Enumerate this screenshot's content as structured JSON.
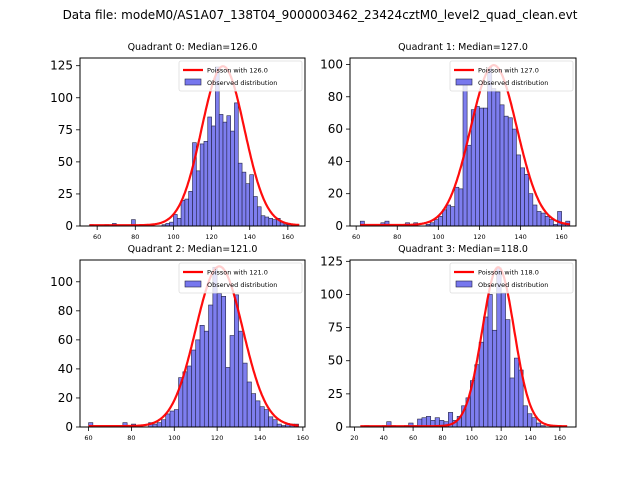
{
  "figure": {
    "suptitle": "Data file: modeM0/AS1A07_138T04_9000003462_23424cztM0_level2_quad_clean.evt"
  },
  "colors": {
    "bar_fill": "#7777ee",
    "bar_edge": "#222244",
    "poisson_line": "#ff0000"
  },
  "chart_data": [
    {
      "type": "bar",
      "title": "Quadrant 0: Median=126.0",
      "legend": [
        "Poisson with 126.0",
        "Observed distribution"
      ],
      "legend_position": "top-right",
      "xlim": [
        51,
        169
      ],
      "ylim": [
        0,
        131
      ],
      "xticks": [
        60,
        80,
        100,
        120,
        140,
        160
      ],
      "yticks": [
        0,
        25,
        50,
        75,
        100,
        125
      ],
      "bin_width": 2,
      "bin_starts": [
        56,
        58,
        60,
        62,
        64,
        66,
        68,
        70,
        72,
        74,
        76,
        78,
        80,
        82,
        84,
        86,
        88,
        90,
        92,
        94,
        96,
        98,
        100,
        102,
        104,
        106,
        108,
        110,
        112,
        114,
        116,
        118,
        120,
        122,
        124,
        126,
        128,
        130,
        132,
        134,
        136,
        138,
        140,
        142,
        144,
        146,
        148,
        150,
        152,
        154,
        156,
        158,
        160,
        162,
        164
      ],
      "values": [
        1,
        0,
        0,
        0,
        1,
        0,
        2,
        0,
        0,
        0,
        0,
        5,
        0,
        0,
        0,
        0,
        0,
        0,
        0,
        1,
        2,
        3,
        9,
        6,
        20,
        21,
        27,
        65,
        43,
        64,
        66,
        85,
        78,
        124,
        87,
        81,
        86,
        74,
        96,
        49,
        42,
        33,
        40,
        23,
        15,
        8,
        7,
        6,
        5,
        6,
        3,
        1,
        1,
        0,
        0
      ],
      "poisson_mean": 126.0,
      "poisson_scale_peak": 124
    },
    {
      "type": "bar",
      "title": "Quadrant 1: Median=127.0",
      "legend": [
        "Poisson with 127.0",
        "Observed distribution"
      ],
      "legend_position": "top-right",
      "xlim": [
        57,
        167
      ],
      "ylim": [
        0,
        104
      ],
      "xticks": [
        60,
        80,
        100,
        120,
        140,
        160
      ],
      "yticks": [
        0,
        20,
        40,
        60,
        80,
        100
      ],
      "bin_width": 2,
      "bin_starts": [
        62,
        64,
        66,
        68,
        70,
        72,
        74,
        76,
        78,
        80,
        82,
        84,
        86,
        88,
        90,
        92,
        94,
        96,
        98,
        100,
        102,
        104,
        106,
        108,
        110,
        112,
        114,
        116,
        118,
        120,
        122,
        124,
        126,
        128,
        130,
        132,
        134,
        136,
        138,
        140,
        142,
        144,
        146,
        148,
        150,
        152,
        154,
        156,
        158,
        160,
        162
      ],
      "values": [
        3,
        0,
        0,
        0,
        0,
        2,
        3,
        0,
        0,
        0,
        0,
        2,
        0,
        2,
        0,
        0,
        1,
        2,
        4,
        6,
        10,
        13,
        12,
        24,
        23,
        88,
        50,
        72,
        74,
        73,
        73,
        98,
        85,
        83,
        75,
        68,
        67,
        60,
        44,
        36,
        32,
        20,
        13,
        9,
        8,
        6,
        4,
        1,
        9,
        1,
        3
      ],
      "poisson_mean": 127.0,
      "poisson_scale_peak": 99
    },
    {
      "type": "bar",
      "title": "Quadrant 2: Median=121.0",
      "legend": [
        "Poisson with 121.0",
        "Observed distribution"
      ],
      "legend_position": "top-right",
      "xlim": [
        56,
        161
      ],
      "ylim": [
        0,
        115
      ],
      "xticks": [
        60,
        80,
        100,
        120,
        140,
        160
      ],
      "yticks": [
        0,
        20,
        40,
        60,
        80,
        100
      ],
      "bin_width": 2,
      "bin_starts": [
        60,
        62,
        64,
        66,
        68,
        70,
        72,
        74,
        76,
        78,
        80,
        82,
        84,
        86,
        88,
        90,
        92,
        94,
        96,
        98,
        100,
        102,
        104,
        106,
        108,
        110,
        112,
        114,
        116,
        118,
        120,
        122,
        124,
        126,
        128,
        130,
        132,
        134,
        136,
        138,
        140,
        142,
        144,
        146,
        148,
        150,
        152,
        154,
        156
      ],
      "values": [
        3,
        0,
        0,
        0,
        0,
        0,
        0,
        0,
        3,
        0,
        2,
        0,
        0,
        0,
        3,
        2,
        3,
        5,
        9,
        11,
        12,
        34,
        38,
        42,
        53,
        60,
        70,
        66,
        84,
        110,
        92,
        90,
        41,
        63,
        91,
        66,
        44,
        31,
        23,
        18,
        14,
        12,
        7,
        5,
        2,
        1,
        2,
        2,
        2
      ],
      "poisson_mean": 121.0,
      "poisson_scale_peak": 110
    },
    {
      "type": "bar",
      "title": "Quadrant 3: Median=118.0",
      "legend": [
        "Poisson with 118.0",
        "Observed distribution"
      ],
      "legend_position": "top-right",
      "xlim": [
        17,
        171
      ],
      "ylim": [
        0,
        126
      ],
      "xticks": [
        20,
        40,
        60,
        80,
        100,
        120,
        140,
        160
      ],
      "yticks": [
        0,
        25,
        50,
        75,
        100,
        125
      ],
      "bin_width": 3,
      "bin_starts": [
        24,
        27,
        30,
        33,
        36,
        39,
        42,
        45,
        48,
        51,
        54,
        57,
        60,
        63,
        66,
        69,
        72,
        75,
        78,
        81,
        84,
        87,
        90,
        93,
        96,
        99,
        102,
        105,
        108,
        111,
        114,
        117,
        120,
        123,
        126,
        129,
        132,
        135,
        138,
        141,
        144,
        147,
        150,
        153,
        156,
        159,
        162
      ],
      "values": [
        0,
        1,
        0,
        0,
        0,
        1,
        4,
        1,
        0,
        0,
        1,
        3,
        1,
        6,
        7,
        8,
        5,
        7,
        5,
        4,
        11,
        5,
        8,
        16,
        22,
        35,
        47,
        64,
        83,
        100,
        73,
        120,
        101,
        81,
        37,
        52,
        43,
        16,
        10,
        7,
        3,
        1,
        0,
        0,
        0,
        0,
        0
      ],
      "poisson_mean": 118.0,
      "poisson_scale_peak": 120
    }
  ]
}
